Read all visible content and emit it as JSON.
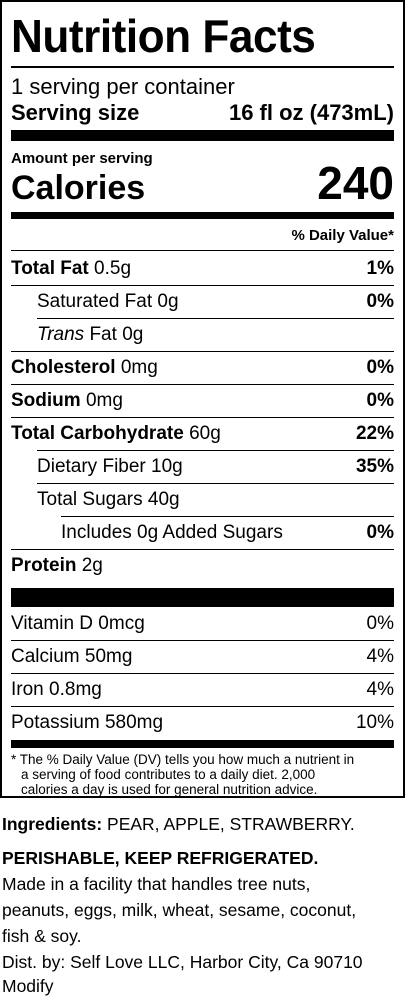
{
  "title": "Nutrition Facts",
  "servings_per_container": "1 serving per container",
  "serving_size_label": "Serving size",
  "serving_size_value": "16 fl oz (473mL)",
  "amount_per_serving": "Amount per serving",
  "calories_label": "Calories",
  "calories_value": "240",
  "daily_value_header": "% Daily Value*",
  "nutrients": [
    {
      "name": "Total Fat",
      "amount": "0.5g",
      "dv": "1%"
    },
    {
      "name": "Saturated Fat",
      "amount": "0g",
      "dv": "0%"
    },
    {
      "name_italic": "Trans",
      "name": "Fat",
      "amount": "0g",
      "dv": ""
    },
    {
      "name": "Cholesterol",
      "amount": "0mg",
      "dv": "0%"
    },
    {
      "name": "Sodium",
      "amount": "0mg",
      "dv": "0%"
    },
    {
      "name": "Total Carbohydrate",
      "amount": "60g",
      "dv": "22%"
    },
    {
      "name": "Dietary Fiber",
      "amount": "10g",
      "dv": "35%"
    },
    {
      "name": "Total Sugars",
      "amount": "40g",
      "dv": ""
    },
    {
      "name": "Includes 0g Added Sugars",
      "amount": "",
      "dv": "0%"
    },
    {
      "name": "Protein",
      "amount": "2g",
      "dv": ""
    }
  ],
  "vitamins": [
    {
      "name": "Vitamin D",
      "amount": "0mcg",
      "dv": "0%"
    },
    {
      "name": "Calcium",
      "amount": "50mg",
      "dv": "4%"
    },
    {
      "name": "Iron",
      "amount": "0.8mg",
      "dv": "4%"
    },
    {
      "name": "Potassium",
      "amount": "580mg",
      "dv": "10%"
    }
  ],
  "footnote_line1": "* The % Daily Value (DV) tells you how much a nutrient in",
  "footnote_line2": "a serving of food contributes to a daily diet. 2,000",
  "footnote_line3": "calories a day is used for general nutrition advice.",
  "ingredients_label": "Ingredients:",
  "ingredients_value": "PEAR, APPLE, STRAWBERRY.",
  "storage_warning": "PERISHABLE, KEEP REFRIGERATED.",
  "allergen_line1": "Made in a facility that handles tree nuts,",
  "allergen_line2": "peanuts, eggs, milk, wheat, sesame, coconut,",
  "allergen_line3": "fish & soy.",
  "distributor": "Dist. by: Self Love LLC, Harbor City, Ca 90710",
  "modify_label": "Modify"
}
